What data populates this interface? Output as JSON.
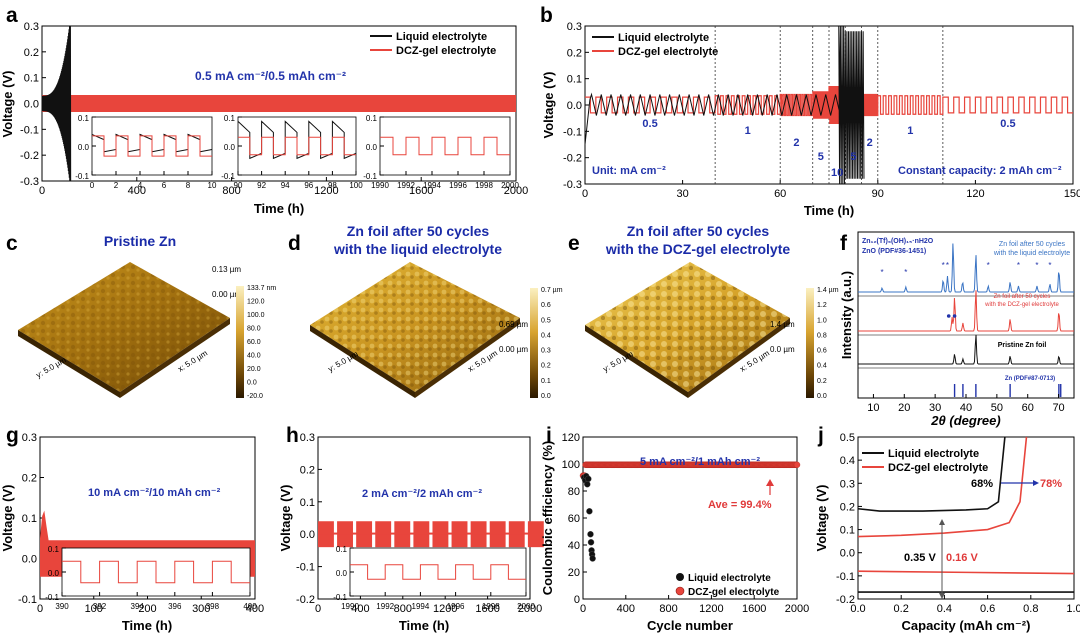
{
  "colors": {
    "liquid": "#111111",
    "gel": "#e8453c",
    "blue": "#2233aa",
    "red": "#e03a3a"
  },
  "legend": {
    "liquid": "Liquid electrolyte",
    "gel": "DCZ-gel electrolyte"
  },
  "panels": {
    "a": {
      "label": "a",
      "condition": "0.5 mA cm⁻²/0.5 mAh cm⁻²",
      "xlabel": "Time (h)",
      "ylabel": "Voltage (V)"
    },
    "b": {
      "label": "b",
      "unit": "Unit: mA cm⁻²",
      "capacity": "Constant capacity: 2 mAh cm⁻²",
      "xlabel": "Time (h)",
      "ylabel": "Voltage (V)",
      "rates": [
        "0.5",
        "1",
        "2",
        "5",
        "10",
        "5",
        "2",
        "1",
        "0.5"
      ]
    },
    "c": {
      "label": "c",
      "title": "Pristine Zn",
      "scale_max": "133.7 nm",
      "scale": [
        "120.0",
        "100.0",
        "80.0",
        "60.0",
        "40.0",
        "20.0",
        "0.0",
        "-20.0"
      ],
      "z_top": "0.13 µm",
      "z_bot": "0.00 µm",
      "y_axis": "y: 5.0 µm",
      "x_axis": "x: 5.0 µm"
    },
    "d": {
      "label": "d",
      "title_1": "Zn foil after 50 cycles",
      "title_2": "with the liquid electrolyte",
      "scale": [
        "0.7 µm",
        "0.6",
        "0.5",
        "0.4",
        "0.3",
        "0.2",
        "0.1",
        "0.0"
      ],
      "z_top": "0.69 µm",
      "z_bot": "0.00 µm",
      "y_axis": "y: 5.0 µm",
      "x_axis": "x: 5.0 µm"
    },
    "e": {
      "label": "e",
      "title_1": "Zn foil after 50 cycles",
      "title_2": "with the DCZ-gel electrolyte",
      "scale": [
        "1.4 µm",
        "1.2",
        "1.0",
        "0.8",
        "0.6",
        "0.4",
        "0.2",
        "0.0"
      ],
      "z_top": "1.4 µm",
      "z_bot": "0.0 µm",
      "y_axis": "y: 5.0 µm",
      "x_axis": "x: 5.0 µm"
    },
    "f": {
      "label": "f",
      "legend_1": "Zn₁₂(Tf)₉(OH)₁₅·nH2O",
      "legend_2": "ZnO  (PDF#36-1451)",
      "trace_blue_1": "Zn foil after 50 cycles",
      "trace_blue_2": "with the liquid electrolyte",
      "trace_red_1": "Zn foil after 50 cycles",
      "trace_red_2": "with the DCZ-gel electrolyte",
      "trace_black": "Pristine Zn foil",
      "ref": "Zn (PDF#87-0713)",
      "xlabel": "2θ (degree)",
      "ylabel": "Intensity (a.u.)"
    },
    "g": {
      "label": "g",
      "condition": "10 mA cm⁻²/10 mAh cm⁻²",
      "xlabel": "Time (h)",
      "ylabel": "Voltage (V)"
    },
    "h": {
      "label": "h",
      "condition": "2 mA cm⁻²/2 mAh cm⁻²",
      "xlabel": "Time (h)",
      "ylabel": "Voltage (V)"
    },
    "i": {
      "label": "i",
      "condition": "5 mA cm⁻²/1 mAh cm⁻²",
      "ave": "Ave = 99.4%",
      "xlabel": "Cycle number",
      "ylabel": "Coulombic efficiency (%)"
    },
    "j": {
      "label": "j",
      "pct_liquid": "68%",
      "pct_gel": "78%",
      "dv_liquid": "0.35 V",
      "dv_gel": "0.16 V",
      "xlabel": "Capacity (mAh cm⁻²)",
      "ylabel": "Voltage (V)"
    }
  },
  "chart_data": [
    {
      "panel": "a",
      "type": "line",
      "xlim": [
        0,
        2000
      ],
      "ylim": [
        -0.3,
        0.3
      ],
      "xticks": [
        0,
        400,
        800,
        1200,
        1600,
        2000
      ],
      "yticks": [
        -0.3,
        -0.2,
        -0.1,
        0.0,
        0.1,
        0.2,
        0.3
      ],
      "series": [
        {
          "name": "Liquid electrolyte",
          "x": [
            0,
            120
          ],
          "y_band": [
            -0.3,
            0.3
          ]
        },
        {
          "name": "DCZ-gel electrolyte",
          "x": [
            0,
            2000
          ],
          "y_band": [
            -0.03,
            0.03
          ]
        }
      ],
      "insets": [
        {
          "xlim": [
            0,
            10
          ],
          "ylim": [
            -0.1,
            0.1
          ],
          "xticks": [
            0,
            2,
            4,
            6,
            8,
            10
          ],
          "yticks": [
            -0.1,
            0.0,
            0.1
          ]
        },
        {
          "xlim": [
            90,
            100
          ],
          "ylim": [
            -0.1,
            0.1
          ],
          "xticks": [
            90,
            92,
            94,
            96,
            98,
            100
          ],
          "yticks": [
            -0.1,
            0.0,
            0.1
          ]
        },
        {
          "xlim": [
            1990,
            2000
          ],
          "ylim": [
            -0.1,
            0.1
          ],
          "xticks": [
            1990,
            1992,
            1994,
            1996,
            1998,
            2000
          ],
          "yticks": [
            -0.1,
            0.0,
            0.1
          ]
        }
      ]
    },
    {
      "panel": "b",
      "type": "line",
      "xlim": [
        0,
        150
      ],
      "ylim": [
        -0.3,
        0.3
      ],
      "xticks": [
        0,
        30,
        60,
        90,
        120,
        150
      ],
      "yticks": [
        -0.3,
        -0.2,
        -0.1,
        0.0,
        0.1,
        0.2,
        0.3
      ],
      "segments": [
        {
          "rate": 0.5,
          "x": [
            0,
            40
          ],
          "amp": 0.03
        },
        {
          "rate": 1,
          "x": [
            40,
            60
          ],
          "amp": 0.035
        },
        {
          "rate": 2,
          "x": [
            60,
            70
          ],
          "amp": 0.04
        },
        {
          "rate": 5,
          "x": [
            70,
            75
          ],
          "amp": 0.05
        },
        {
          "rate": 10,
          "x": [
            75,
            80
          ],
          "amp": 0.07
        },
        {
          "rate": 5,
          "x": [
            80,
            85
          ],
          "amp": 0.05
        },
        {
          "rate": 2,
          "x": [
            85,
            90
          ],
          "amp": 0.04
        },
        {
          "rate": 1,
          "x": [
            90,
            110
          ],
          "amp": 0.035
        },
        {
          "rate": 0.5,
          "x": [
            110,
            150
          ],
          "amp": 0.03
        }
      ]
    },
    {
      "panel": "f",
      "type": "line",
      "xlim": [
        5,
        75
      ],
      "xticks": [
        10,
        20,
        30,
        40,
        50,
        60,
        70
      ],
      "ref_peaks": [
        36.3,
        39.0,
        43.2,
        54.3,
        70.1,
        70.7
      ]
    },
    {
      "panel": "g",
      "type": "line",
      "xlim": [
        0,
        400
      ],
      "ylim": [
        -0.1,
        0.3
      ],
      "xticks": [
        0,
        100,
        200,
        300,
        400
      ],
      "yticks": [
        -0.1,
        0.0,
        0.1,
        0.2,
        0.3
      ],
      "inset": {
        "xlim": [
          390,
          400
        ],
        "ylim": [
          -0.1,
          0.1
        ],
        "xticks": [
          390,
          392,
          394,
          396,
          398,
          400
        ],
        "yticks": [
          -0.1,
          0.0,
          0.1
        ]
      }
    },
    {
      "panel": "h",
      "type": "line",
      "xlim": [
        0,
        2000
      ],
      "ylim": [
        -0.2,
        0.3
      ],
      "xticks": [
        0,
        400,
        800,
        1200,
        1600,
        2000
      ],
      "yticks": [
        -0.2,
        -0.1,
        0.0,
        0.1,
        0.2,
        0.3
      ],
      "inset": {
        "xlim": [
          1990,
          2000
        ],
        "ylim": [
          -0.1,
          0.1
        ],
        "xticks": [
          1990,
          1992,
          1994,
          1996,
          1998,
          2000
        ],
        "yticks": [
          -0.1,
          0.0,
          0.1
        ]
      }
    },
    {
      "panel": "i",
      "type": "scatter",
      "xlim": [
        0,
        2000
      ],
      "ylim": [
        0,
        120
      ],
      "xticks": [
        0,
        400,
        800,
        1200,
        1600,
        2000
      ],
      "yticks": [
        0,
        20,
        40,
        60,
        80,
        100,
        120
      ],
      "series": [
        {
          "name": "Liquid electrolyte",
          "x": [
            10,
            20,
            30,
            40,
            50,
            60,
            70,
            75,
            80,
            85,
            90
          ],
          "y": [
            90,
            88,
            91,
            85,
            89,
            65,
            48,
            42,
            36,
            33,
            30
          ]
        },
        {
          "name": "DCZ-gel electrolyte",
          "x_range": [
            0,
            2000
          ],
          "y": 99.4
        }
      ]
    },
    {
      "panel": "j",
      "type": "line",
      "xlim": [
        0,
        1.0
      ],
      "ylim": [
        -0.2,
        0.5
      ],
      "xticks": [
        0.0,
        0.2,
        0.4,
        0.6,
        0.8,
        1.0
      ],
      "yticks": [
        -0.2,
        -0.1,
        0.0,
        0.1,
        0.2,
        0.3,
        0.4,
        0.5
      ],
      "series": [
        {
          "name": "Liquid electrolyte",
          "charge": [
            [
              0,
              0.19
            ],
            [
              0.1,
              0.18
            ],
            [
              0.3,
              0.18
            ],
            [
              0.5,
              0.185
            ],
            [
              0.6,
              0.19
            ],
            [
              0.65,
              0.22
            ],
            [
              0.68,
              0.5
            ]
          ],
          "discharge": [
            [
              0,
              -0.17
            ],
            [
              0.5,
              -0.17
            ],
            [
              1.0,
              -0.17
            ]
          ]
        },
        {
          "name": "DCZ-gel electrolyte",
          "charge": [
            [
              0,
              0.07
            ],
            [
              0.2,
              0.075
            ],
            [
              0.4,
              0.085
            ],
            [
              0.6,
              0.1
            ],
            [
              0.7,
              0.13
            ],
            [
              0.75,
              0.22
            ],
            [
              0.78,
              0.5
            ]
          ],
          "discharge": [
            [
              0,
              -0.08
            ],
            [
              0.5,
              -0.085
            ],
            [
              1.0,
              -0.09
            ]
          ]
        }
      ]
    }
  ]
}
